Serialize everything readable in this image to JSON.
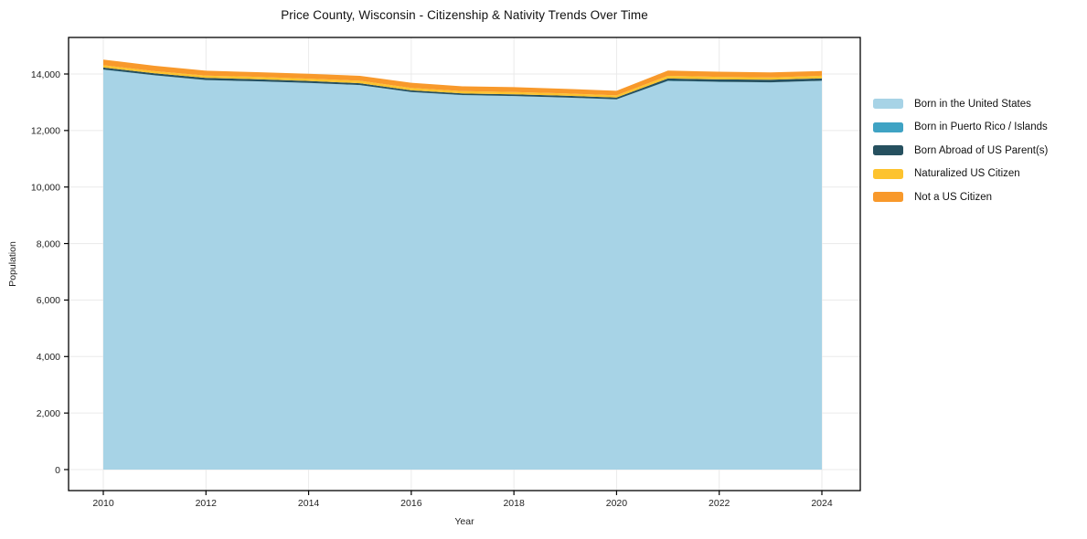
{
  "page": {
    "background": "#ffffff"
  },
  "chart_data": {
    "type": "area",
    "stacked": true,
    "title": "Price County, Wisconsin - Citizenship & Nativity Trends Over Time",
    "xlabel": "Year",
    "ylabel": "Population",
    "x": [
      2010,
      2011,
      2012,
      2013,
      2014,
      2015,
      2016,
      2017,
      2018,
      2019,
      2020,
      2021,
      2022,
      2023,
      2024
    ],
    "series": [
      {
        "name": "Born in the United States",
        "color": "#a7d3e6",
        "values": [
          14150,
          13950,
          13780,
          13740,
          13680,
          13610,
          13360,
          13250,
          13220,
          13170,
          13100,
          13750,
          13720,
          13700,
          13760
        ]
      },
      {
        "name": "Born in Puerto Rico / Islands",
        "color": "#3fa3c4",
        "values": [
          10,
          5,
          5,
          0,
          5,
          0,
          0,
          5,
          0,
          0,
          5,
          10,
          5,
          5,
          0
        ]
      },
      {
        "name": "Born Abroad of US Parent(s)",
        "color": "#26505f",
        "values": [
          70,
          70,
          80,
          75,
          70,
          65,
          60,
          55,
          60,
          65,
          60,
          80,
          85,
          90,
          85
        ]
      },
      {
        "name": "Naturalized US Citizen",
        "color": "#fdc32e",
        "values": [
          80,
          75,
          80,
          85,
          80,
          85,
          90,
          85,
          80,
          75,
          80,
          95,
          90,
          85,
          95
        ]
      },
      {
        "name": "Not a US Citizen",
        "color": "#f8992b",
        "values": [
          200,
          190,
          170,
          165,
          170,
          175,
          180,
          170,
          175,
          165,
          160,
          185,
          180,
          175,
          165
        ]
      }
    ],
    "xticks": [
      2010,
      2012,
      2014,
      2016,
      2018,
      2020,
      2022,
      2024
    ],
    "xtick_labels": [
      "2010",
      "2012",
      "2014",
      "2016",
      "2018",
      "2020",
      "2022",
      "2024"
    ],
    "yticks": [
      0,
      2000,
      4000,
      6000,
      8000,
      10000,
      12000,
      14000
    ],
    "ytick_labels": [
      "0",
      "2,000",
      "4,000",
      "6,000",
      "8,000",
      "10,000",
      "12,000",
      "14,000"
    ],
    "ylim": [
      -740,
      15290
    ],
    "grid": true,
    "legend_position": "right-outside",
    "colors": {
      "grid": "#eaeaea",
      "axis": "#000000",
      "plot_background": "#ffffff"
    }
  }
}
